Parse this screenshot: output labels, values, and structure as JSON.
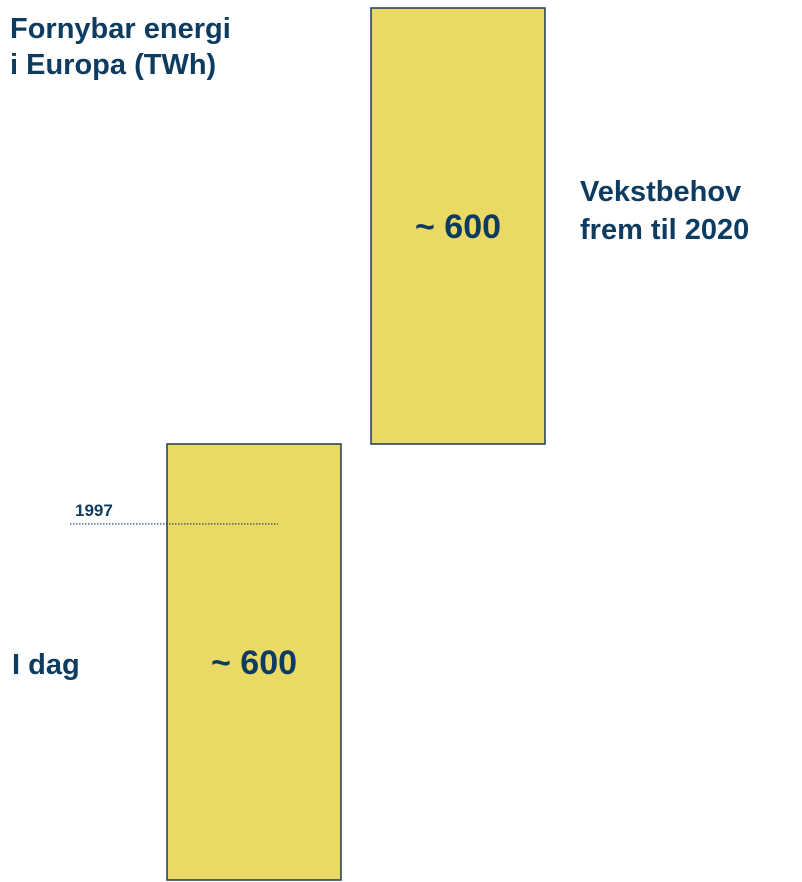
{
  "chart_data": {
    "type": "waterfall",
    "title": "Fornybar energi\ni Europa (TWh)",
    "categories": [
      "I dag",
      "Vekstbehov\nfrem til 2020"
    ],
    "values": [
      600,
      600
    ],
    "value_labels": [
      "~ 600",
      "~ 600"
    ],
    "color": "#ebd966",
    "ylim": [
      0,
      1200
    ],
    "annotations": [
      {
        "label": "1997",
        "value": 490
      }
    ]
  }
}
